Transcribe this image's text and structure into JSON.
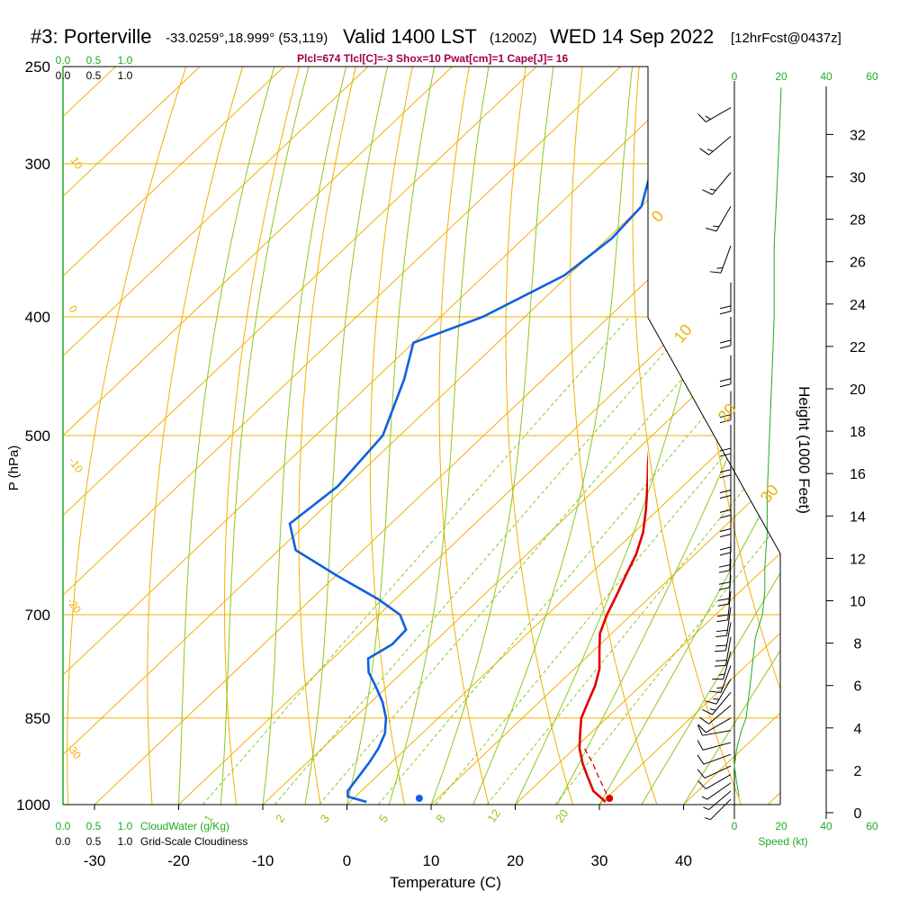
{
  "header": {
    "station": "#3: Porterville",
    "coords": "-33.0259°,18.999° (53,119)",
    "valid": "Valid 1400 LST",
    "zulu": "(1200Z)",
    "date": "WED 14 Sep 2022",
    "forecast": "[12hrFcst@0437z]",
    "indices": "Plcl=674 Tlcl[C]=-3 Shox=10 Pwat[cm]=1 Cape[J]= 16"
  },
  "colors": {
    "isotherm": "#f0b000",
    "isobar": "#f0b000",
    "dry_adiabat": "#f0b000",
    "moist_adiabat": "#8cc820",
    "mixing_ratio": "#8cc820",
    "temperature": "#e00000",
    "dewpoint": "#1060e0",
    "cloud": "#22aa22",
    "speed": "#22aa22"
  },
  "chart_data": {
    "type": "line",
    "title": "#3: Porterville  Valid 1400 LST (1200Z) WED 14 Sep 2022",
    "xlabel": "Temperature (C)",
    "ylabel": "P (hPa)",
    "right_axis_label": "Height (1000 Feet)",
    "xlim": [
      -35,
      45
    ],
    "plim": [
      1000,
      250
    ],
    "log_pressure": true,
    "skew": true,
    "x_ticks": [
      -30,
      -20,
      -10,
      0,
      10,
      20,
      30,
      40
    ],
    "p_ticks": [
      1000,
      850,
      700,
      500,
      400,
      300,
      250
    ],
    "height_ticks": [
      0,
      2,
      4,
      6,
      8,
      10,
      12,
      14,
      16,
      18,
      20,
      22,
      24,
      26,
      28,
      30,
      32
    ],
    "series": [
      {
        "name": "Temperature",
        "color": "#e00000",
        "points": [
          {
            "p": 995,
            "t": 30.4
          },
          {
            "p": 975,
            "t": 27.6
          },
          {
            "p": 950,
            "t": 25.2
          },
          {
            "p": 925,
            "t": 22.8
          },
          {
            "p": 900,
            "t": 20.6
          },
          {
            "p": 875,
            "t": 18.8
          },
          {
            "p": 850,
            "t": 17.0
          },
          {
            "p": 825,
            "t": 15.8
          },
          {
            "p": 800,
            "t": 14.6
          },
          {
            "p": 775,
            "t": 13.0
          },
          {
            "p": 750,
            "t": 10.8
          },
          {
            "p": 725,
            "t": 8.6
          },
          {
            "p": 700,
            "t": 7.1
          },
          {
            "p": 675,
            "t": 5.8
          },
          {
            "p": 650,
            "t": 4.4
          },
          {
            "p": 625,
            "t": 3.0
          },
          {
            "p": 600,
            "t": 1.1
          },
          {
            "p": 575,
            "t": -1.4
          },
          {
            "p": 550,
            "t": -4.2
          },
          {
            "p": 525,
            "t": -7.2
          },
          {
            "p": 500,
            "t": -10.2
          },
          {
            "p": 475,
            "t": -13.6
          },
          {
            "p": 450,
            "t": -17.2
          },
          {
            "p": 425,
            "t": -20.6
          },
          {
            "p": 400,
            "t": -24.2
          },
          {
            "p": 375,
            "t": -28.0
          },
          {
            "p": 350,
            "t": -32.0
          },
          {
            "p": 325,
            "t": -36.0
          },
          {
            "p": 300,
            "t": -40.6
          },
          {
            "p": 275,
            "t": -45.6
          },
          {
            "p": 258,
            "t": -49.3
          }
        ]
      },
      {
        "name": "Dewpoint",
        "color": "#1060e0",
        "points": [
          {
            "p": 995,
            "t": 2.0
          },
          {
            "p": 985,
            "t": -0.9
          },
          {
            "p": 975,
            "t": -1.6
          },
          {
            "p": 950,
            "t": -2.1
          },
          {
            "p": 925,
            "t": -2.6
          },
          {
            "p": 900,
            "t": -3.3
          },
          {
            "p": 875,
            "t": -4.4
          },
          {
            "p": 850,
            "t": -6.2
          },
          {
            "p": 825,
            "t": -8.6
          },
          {
            "p": 800,
            "t": -11.5
          },
          {
            "p": 780,
            "t": -14.0
          },
          {
            "p": 760,
            "t": -15.8
          },
          {
            "p": 740,
            "t": -14.7
          },
          {
            "p": 720,
            "t": -14.9
          },
          {
            "p": 700,
            "t": -17.5
          },
          {
            "p": 680,
            "t": -22.0
          },
          {
            "p": 650,
            "t": -30.0
          },
          {
            "p": 620,
            "t": -38.0
          },
          {
            "p": 590,
            "t": -42.0
          },
          {
            "p": 550,
            "t": -41.0
          },
          {
            "p": 500,
            "t": -42.0
          },
          {
            "p": 450,
            "t": -46.5
          },
          {
            "p": 420,
            "t": -50.0
          },
          {
            "p": 400,
            "t": -45.0
          },
          {
            "p": 370,
            "t": -40.5
          },
          {
            "p": 345,
            "t": -39.5
          },
          {
            "p": 325,
            "t": -40.0
          },
          {
            "p": 300,
            "t": -44.0
          },
          {
            "p": 275,
            "t": -48.0
          },
          {
            "p": 258,
            "t": -52.0
          }
        ]
      },
      {
        "name": "Parcel",
        "color": "#e00000",
        "dashed": true,
        "points": [
          {
            "p": 995,
            "t": 31.0
          },
          {
            "p": 975,
            "t": 29.0
          },
          {
            "p": 950,
            "t": 26.5
          },
          {
            "p": 925,
            "t": 24.0
          },
          {
            "p": 900,
            "t": 21.2
          }
        ]
      }
    ],
    "surface_markers": [
      {
        "name": "Surface temperature",
        "p": 1000,
        "t": 31.2,
        "color": "#e00000"
      },
      {
        "name": "Surface dewpoint",
        "p": 1000,
        "t": 8.6,
        "color": "#1060e0"
      }
    ],
    "isotherm_labels": [
      {
        "t": 0,
        "label": "0"
      },
      {
        "t": 10,
        "label": "10"
      },
      {
        "t": 20,
        "label": "20"
      },
      {
        "t": 30,
        "label": "30"
      },
      {
        "t": 10,
        "label": "10",
        "left": true
      },
      {
        "t": 0,
        "label": "0",
        "left": true
      },
      {
        "t": -10,
        "label": "-10",
        "left": true
      },
      {
        "t": -20,
        "label": "-20",
        "left": true
      },
      {
        "t": -30,
        "label": "-30",
        "left": true
      }
    ],
    "mixing_ratio_labels": [
      "1",
      "2",
      "3",
      "5",
      "8",
      "12",
      "20"
    ],
    "cloud_scale": {
      "labels": [
        "0.0",
        "0.5",
        "1.0"
      ],
      "caption": "CloudWater (g/Kg)"
    },
    "cloudiness_scale": {
      "labels": [
        "0.0",
        "0.5",
        "1.0"
      ],
      "caption": "Grid-Scale Cloudiness"
    },
    "speed_axis": {
      "ticks": [
        "0",
        "20",
        "40",
        "60"
      ],
      "caption": "Speed (kt)"
    },
    "wind_speed_profile": [
      {
        "p": 985,
        "kt": 2
      },
      {
        "p": 960,
        "kt": 1
      },
      {
        "p": 930,
        "kt": 0
      },
      {
        "p": 900,
        "kt": 1
      },
      {
        "p": 870,
        "kt": 3
      },
      {
        "p": 850,
        "kt": 5
      },
      {
        "p": 820,
        "kt": 6
      },
      {
        "p": 790,
        "kt": 7
      },
      {
        "p": 760,
        "kt": 8
      },
      {
        "p": 730,
        "kt": 9
      },
      {
        "p": 700,
        "kt": 12
      },
      {
        "p": 670,
        "kt": 13
      },
      {
        "p": 640,
        "kt": 13
      },
      {
        "p": 600,
        "kt": 14
      },
      {
        "p": 560,
        "kt": 14
      },
      {
        "p": 500,
        "kt": 15
      },
      {
        "p": 450,
        "kt": 16
      },
      {
        "p": 400,
        "kt": 17
      },
      {
        "p": 350,
        "kt": 17
      },
      {
        "p": 320,
        "kt": 18
      },
      {
        "p": 290,
        "kt": 19
      },
      {
        "p": 260,
        "kt": 20
      }
    ],
    "wind_barbs": [
      {
        "p": 990,
        "speed": 8,
        "dir": 315
      },
      {
        "p": 975,
        "speed": 8,
        "dir": 310
      },
      {
        "p": 960,
        "speed": 8,
        "dir": 305
      },
      {
        "p": 945,
        "speed": 10,
        "dir": 300
      },
      {
        "p": 930,
        "speed": 10,
        "dir": 295
      },
      {
        "p": 910,
        "speed": 12,
        "dir": 290
      },
      {
        "p": 890,
        "speed": 12,
        "dir": 285
      },
      {
        "p": 870,
        "speed": 12,
        "dir": 280
      },
      {
        "p": 850,
        "speed": 14,
        "dir": 300
      },
      {
        "p": 830,
        "speed": 14,
        "dir": 310
      },
      {
        "p": 810,
        "speed": 15,
        "dir": 320
      },
      {
        "p": 790,
        "speed": 15,
        "dir": 330
      },
      {
        "p": 770,
        "speed": 18,
        "dir": 340
      },
      {
        "p": 750,
        "speed": 18,
        "dir": 345
      },
      {
        "p": 730,
        "speed": 20,
        "dir": 350
      },
      {
        "p": 710,
        "speed": 20,
        "dir": 350
      },
      {
        "p": 690,
        "speed": 20,
        "dir": 352
      },
      {
        "p": 670,
        "speed": 22,
        "dir": 354
      },
      {
        "p": 650,
        "speed": 22,
        "dir": 356
      },
      {
        "p": 630,
        "speed": 22,
        "dir": 358
      },
      {
        "p": 610,
        "speed": 22,
        "dir": 358
      },
      {
        "p": 590,
        "speed": 22,
        "dir": 0
      },
      {
        "p": 570,
        "speed": 22,
        "dir": 0
      },
      {
        "p": 550,
        "speed": 22,
        "dir": 0
      },
      {
        "p": 530,
        "speed": 22,
        "dir": 0
      },
      {
        "p": 510,
        "speed": 22,
        "dir": 0
      },
      {
        "p": 490,
        "speed": 22,
        "dir": 0
      },
      {
        "p": 460,
        "speed": 22,
        "dir": 0
      },
      {
        "p": 430,
        "speed": 22,
        "dir": 0
      },
      {
        "p": 400,
        "speed": 22,
        "dir": 0
      },
      {
        "p": 375,
        "speed": 22,
        "dir": 0
      },
      {
        "p": 350,
        "speed": 18,
        "dir": 340
      },
      {
        "p": 325,
        "speed": 18,
        "dir": 330
      },
      {
        "p": 305,
        "speed": 18,
        "dir": 320
      },
      {
        "p": 285,
        "speed": 18,
        "dir": 310
      },
      {
        "p": 270,
        "speed": 15,
        "dir": 300
      }
    ]
  }
}
